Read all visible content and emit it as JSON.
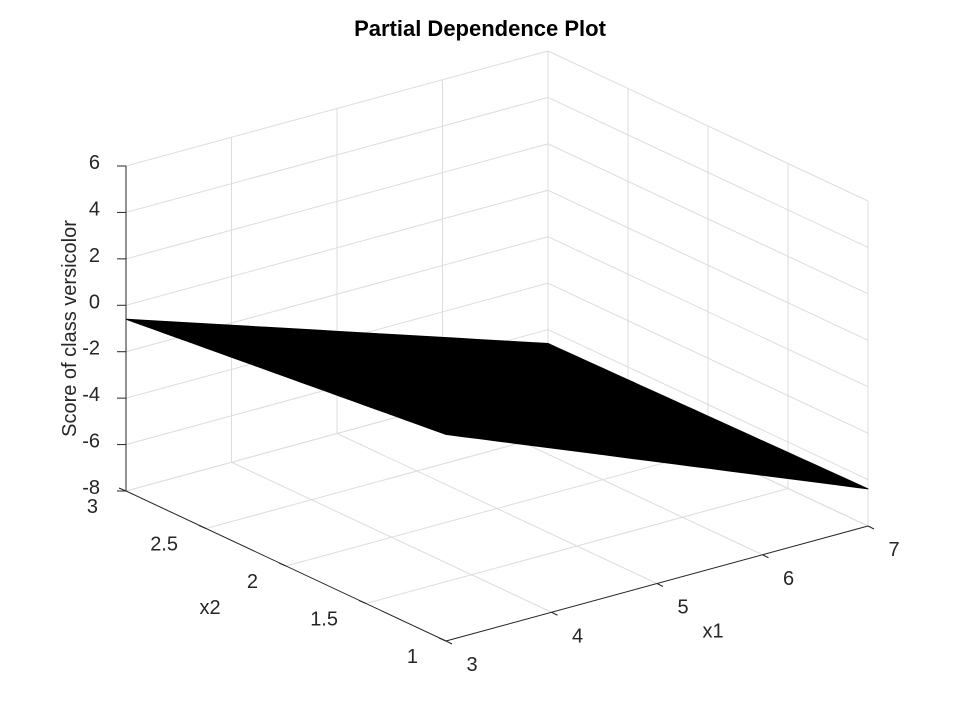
{
  "chart_data": {
    "type": "surface",
    "title": "Partial Dependence Plot",
    "xlabel": "x1",
    "ylabel": "x2",
    "zlabel": "Score of class versicolor",
    "xlim": [
      3,
      7
    ],
    "ylim": [
      1,
      3
    ],
    "zlim": [
      -8,
      6
    ],
    "x_ticks": [
      3,
      4,
      5,
      6,
      7
    ],
    "y_ticks": [
      1,
      1.5,
      2,
      2.5,
      3
    ],
    "z_ticks": [
      -8,
      -6,
      -4,
      -2,
      0,
      2,
      4,
      6
    ],
    "x_tick_labels": [
      "3",
      "4",
      "5",
      "6",
      "7"
    ],
    "y_tick_labels": [
      "1",
      "1.5",
      "2",
      "2.5",
      "3"
    ],
    "z_tick_labels": [
      "-8",
      "-6",
      "-4",
      "-2",
      "0",
      "2",
      "4",
      "6"
    ],
    "grid": true,
    "surface": {
      "x": [
        3,
        7
      ],
      "y": [
        1,
        3
      ],
      "z": [
        [
          0.9,
          -0.6
        ],
        [
          -6.4,
          -6.6
        ]
      ],
      "color": "#000000"
    }
  }
}
